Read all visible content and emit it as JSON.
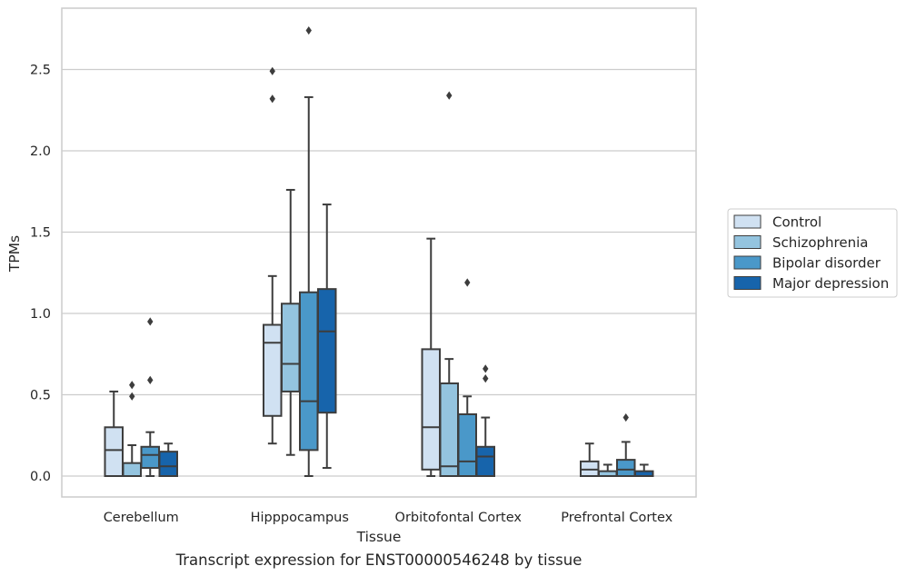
{
  "chart_data": {
    "type": "box",
    "title": "",
    "caption": "Transcript expression for ENST00000546248 by tissue",
    "xlabel": "Tissue",
    "ylabel": "TPMs",
    "ylim": [
      -0.13,
      2.88
    ],
    "yticks": [
      "0.0",
      "0.5",
      "1.0",
      "1.5",
      "2.0",
      "2.5"
    ],
    "ytick_values": [
      0,
      0.5,
      1.0,
      1.5,
      2.0,
      2.5
    ],
    "grid": "horizontal",
    "legend_position": "right",
    "categories": [
      "Cerebellum",
      "Hipppocampus",
      "Orbitofontal Cortex",
      "Prefrontal Cortex"
    ],
    "series": [
      {
        "name": "Control",
        "color": "#d0e1f2",
        "boxes": [
          {
            "whislo": 0.0,
            "q1": 0.0,
            "med": 0.16,
            "q3": 0.3,
            "whishi": 0.52,
            "fliers": []
          },
          {
            "whislo": 0.2,
            "q1": 0.37,
            "med": 0.82,
            "q3": 0.93,
            "whishi": 1.23,
            "fliers": [
              2.32,
              2.49
            ]
          },
          {
            "whislo": 0.0,
            "q1": 0.04,
            "med": 0.3,
            "q3": 0.78,
            "whishi": 1.46,
            "fliers": []
          },
          {
            "whislo": 0.0,
            "q1": 0.0,
            "med": 0.04,
            "q3": 0.09,
            "whishi": 0.2,
            "fliers": []
          }
        ]
      },
      {
        "name": "Schizophrenia",
        "color": "#94c4df",
        "boxes": [
          {
            "whislo": 0.0,
            "q1": 0.0,
            "med": 0.0,
            "q3": 0.08,
            "whishi": 0.19,
            "fliers": [
              0.49,
              0.56
            ]
          },
          {
            "whislo": 0.13,
            "q1": 0.52,
            "med": 0.69,
            "q3": 1.06,
            "whishi": 1.76,
            "fliers": []
          },
          {
            "whislo": 0.0,
            "q1": 0.0,
            "med": 0.06,
            "q3": 0.57,
            "whishi": 0.72,
            "fliers": [
              2.34
            ]
          },
          {
            "whislo": 0.0,
            "q1": 0.0,
            "med": 0.0,
            "q3": 0.03,
            "whishi": 0.07,
            "fliers": []
          }
        ]
      },
      {
        "name": "Bipolar disorder",
        "color": "#4a98c9",
        "boxes": [
          {
            "whislo": 0.0,
            "q1": 0.05,
            "med": 0.13,
            "q3": 0.18,
            "whishi": 0.27,
            "fliers": [
              0.59,
              0.95
            ]
          },
          {
            "whislo": 0.0,
            "q1": 0.16,
            "med": 0.46,
            "q3": 1.13,
            "whishi": 2.33,
            "fliers": [
              2.74
            ]
          },
          {
            "whislo": 0.0,
            "q1": 0.0,
            "med": 0.09,
            "q3": 0.38,
            "whishi": 0.49,
            "fliers": [
              1.19
            ]
          },
          {
            "whislo": 0.0,
            "q1": 0.0,
            "med": 0.04,
            "q3": 0.1,
            "whishi": 0.21,
            "fliers": [
              0.36
            ]
          }
        ]
      },
      {
        "name": "Major depression",
        "color": "#1764ab",
        "boxes": [
          {
            "whislo": 0.0,
            "q1": 0.0,
            "med": 0.06,
            "q3": 0.15,
            "whishi": 0.2,
            "fliers": []
          },
          {
            "whislo": 0.05,
            "q1": 0.39,
            "med": 0.89,
            "q3": 1.15,
            "whishi": 1.67,
            "fliers": []
          },
          {
            "whislo": 0.0,
            "q1": 0.0,
            "med": 0.12,
            "q3": 0.18,
            "whishi": 0.36,
            "fliers": [
              0.6,
              0.66
            ]
          },
          {
            "whislo": 0.0,
            "q1": 0.0,
            "med": 0.0,
            "q3": 0.03,
            "whishi": 0.07,
            "fliers": []
          }
        ]
      }
    ]
  }
}
